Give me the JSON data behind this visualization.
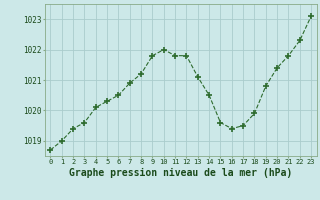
{
  "x": [
    0,
    1,
    2,
    3,
    4,
    5,
    6,
    7,
    8,
    9,
    10,
    11,
    12,
    13,
    14,
    15,
    16,
    17,
    18,
    19,
    20,
    21,
    22,
    23
  ],
  "y": [
    1018.7,
    1019.0,
    1019.4,
    1019.6,
    1020.1,
    1020.3,
    1020.5,
    1020.9,
    1021.2,
    1021.8,
    1022.0,
    1021.8,
    1021.8,
    1021.1,
    1020.5,
    1019.6,
    1019.4,
    1019.5,
    1019.9,
    1020.8,
    1021.4,
    1021.8,
    1022.3,
    1023.1
  ],
  "line_color": "#2d6b2d",
  "marker": "+",
  "marker_size": 5,
  "bg_color": "#cce8e8",
  "grid_color": "#aacccc",
  "xlabel": "Graphe pression niveau de la mer (hPa)",
  "xlabel_fontsize": 7,
  "tick_label_color": "#1a4a1a",
  "ylim": [
    1018.5,
    1023.5
  ],
  "yticks": [
    1019,
    1020,
    1021,
    1022,
    1023
  ],
  "xticks": [
    0,
    1,
    2,
    3,
    4,
    5,
    6,
    7,
    8,
    9,
    10,
    11,
    12,
    13,
    14,
    15,
    16,
    17,
    18,
    19,
    20,
    21,
    22,
    23
  ],
  "spine_color": "#88aa88"
}
